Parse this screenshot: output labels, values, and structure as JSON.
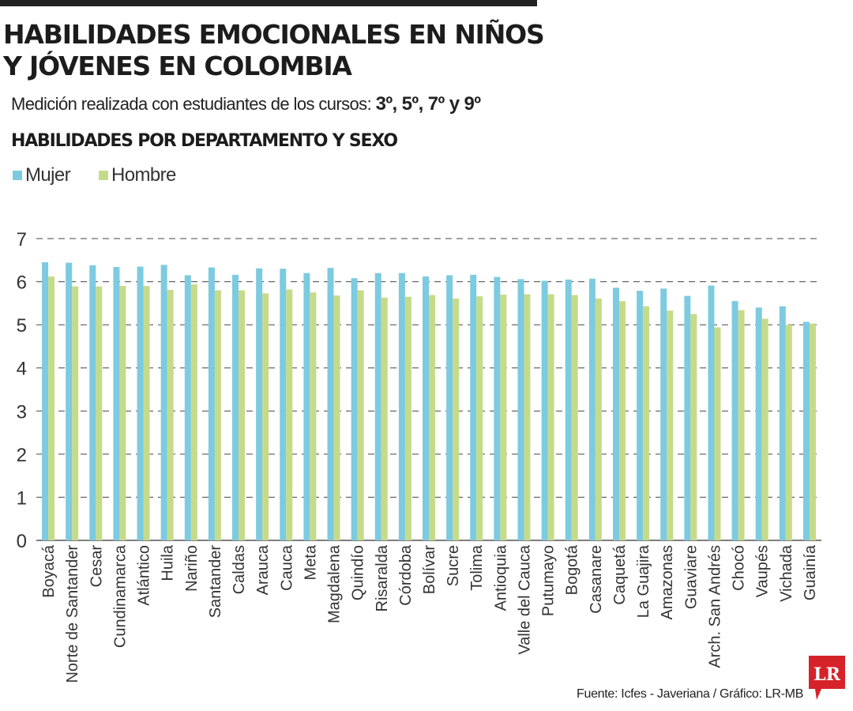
{
  "header": {
    "title_line1": "HABILIDADES EMOCIONALES EN NIÑOS",
    "title_line2": "Y JÓVENES EN COLOMBIA",
    "subtitle_text": "Medición realizada con estudiantes de los cursos:",
    "subtitle_grades": "3º, 5º, 7º y 9º",
    "section_title": "HABILIDADES POR DEPARTAMENTO Y SEXO"
  },
  "legend": {
    "mujer": "Mujer",
    "hombre": "Hombre"
  },
  "colors": {
    "mujer": "#7ccbe0",
    "hombre": "#c6db8a",
    "logo": "#d6232a",
    "grid": "#444444"
  },
  "chart_data": {
    "type": "bar",
    "title": "HABILIDADES POR DEPARTAMENTO Y SEXO",
    "xlabel": "",
    "ylabel": "",
    "ylim": [
      0,
      7
    ],
    "yticks": [
      0,
      1,
      2,
      3,
      4,
      5,
      6,
      7
    ],
    "grid": true,
    "legend_position": "top-left",
    "categories": [
      "Boyacá",
      "Norte de Santander",
      "Cesar",
      "Cundinamarca",
      "Atlántico",
      "Huila",
      "Nariño",
      "Santander",
      "Caldas",
      "Arauca",
      "Cauca",
      "Meta",
      "Magdalena",
      "Quindío",
      "Risaralda",
      "Córdoba",
      "Bolívar",
      "Sucre",
      "Tolima",
      "Antioquia",
      "Valle del Cauca",
      "Putumayo",
      "Bogotá",
      "Casanare",
      "Caquetá",
      "La Guajira",
      "Amazonas",
      "Guaviare",
      "Arch. San Andrés",
      "Chocó",
      "Vaupés",
      "Vichada",
      "Guainía"
    ],
    "series": [
      {
        "name": "Mujer",
        "values": [
          6.45,
          6.44,
          6.38,
          6.34,
          6.35,
          6.39,
          6.15,
          6.33,
          6.16,
          6.31,
          6.3,
          6.2,
          6.32,
          6.08,
          6.2,
          6.2,
          6.12,
          6.15,
          6.16,
          6.11,
          6.06,
          6.02,
          6.05,
          6.07,
          5.86,
          5.79,
          5.84,
          5.67,
          5.91,
          5.55,
          5.4,
          5.43,
          5.07
        ]
      },
      {
        "name": "Hombre",
        "values": [
          6.12,
          5.89,
          5.89,
          5.9,
          5.9,
          5.81,
          5.94,
          5.8,
          5.8,
          5.73,
          5.82,
          5.75,
          5.68,
          5.8,
          5.63,
          5.65,
          5.69,
          5.61,
          5.66,
          5.7,
          5.71,
          5.71,
          5.69,
          5.61,
          5.55,
          5.43,
          5.33,
          5.25,
          4.94,
          5.34,
          5.14,
          5.0,
          5.03
        ]
      }
    ]
  },
  "footer": {
    "source": "Fuente: Icfes - Javeriana / Gráfico: LR-MB",
    "logo_text": "LR"
  }
}
